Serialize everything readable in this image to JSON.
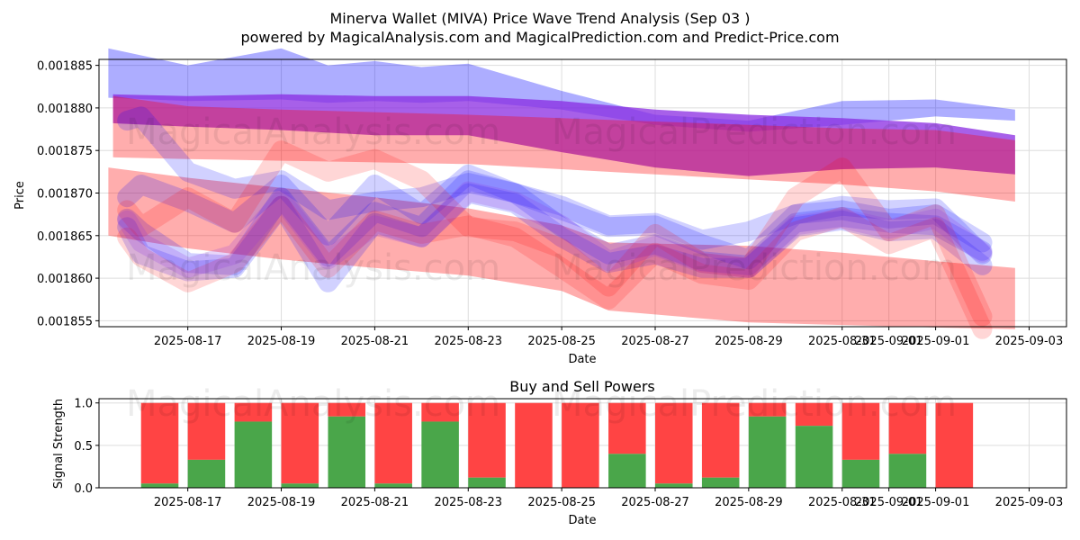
{
  "figure": {
    "title": "Minerva Wallet (MIVA) Price Wave Trend Analysis (Sep 03 )",
    "subtitle": "powered by MagicalAnalysis.com and MagicalPrediction.com and Predict-Price.com",
    "watermark_1": "MagicalAnalysis.com",
    "watermark_2": "MagicalPrediction.com"
  },
  "colors": {
    "red": "#ff0000",
    "blue": "#0000ff",
    "green": "#4aa64a",
    "sell": "#ff4444",
    "grid": "#dddddd"
  },
  "chart_data": [
    {
      "type": "area",
      "title": "",
      "xlabel": "Date",
      "ylabel": "Price",
      "xlim": [
        -1.9,
        18.8
      ],
      "ylim": [
        0.0018543,
        0.0018857
      ],
      "x_tick_positions": [
        0,
        2,
        4,
        6,
        8,
        10,
        12,
        14,
        15,
        16,
        18
      ],
      "x_tick_labels": [
        "2025-08-17",
        "2025-08-19",
        "2025-08-21",
        "2025-08-23",
        "2025-08-25",
        "2025-08-27",
        "2025-08-29",
        "2025-08-31",
        "2025-09-01",
        "2025-09-01",
        "2025-09-03"
      ],
      "y_ticks": [
        0.001855,
        0.00186,
        0.001865,
        0.00187,
        0.001875,
        0.00188,
        0.001885
      ],
      "y_tick_labels": [
        "0.001855",
        "0.001860",
        "0.001865",
        "0.001870",
        "0.001875",
        "0.001880",
        "0.001885"
      ],
      "grid": true,
      "series": [
        {
          "name": "blue band upper",
          "color": "blue",
          "opacity": 0.32,
          "x": [
            -1.7,
            0,
            2,
            3,
            4,
            5,
            6,
            8,
            10,
            12,
            14,
            16,
            17.7
          ],
          "upper": [
            0.001887,
            0.001885,
            0.001887,
            0.001885,
            0.0018855,
            0.0018848,
            0.0018852,
            0.001882,
            0.0018792,
            0.0018785,
            0.0018808,
            0.001881,
            0.0018798
          ],
          "lower": [
            0.0018812,
            0.0018808,
            0.001881,
            0.0018806,
            0.0018808,
            0.0018806,
            0.0018808,
            0.0018798,
            0.001878,
            0.0018772,
            0.001878,
            0.001879,
            0.0018785
          ]
        },
        {
          "name": "purple band upper",
          "color": "purple",
          "opacity": 0.75,
          "x": [
            -1.6,
            0,
            2,
            4,
            6,
            8,
            10,
            12,
            14,
            16,
            17.7
          ],
          "upper": [
            0.0018816,
            0.0018814,
            0.0018816,
            0.0018814,
            0.0018814,
            0.0018808,
            0.0018798,
            0.0018792,
            0.0018788,
            0.0018782,
            0.0018768
          ],
          "lower": [
            0.0018782,
            0.0018778,
            0.0018774,
            0.0018768,
            0.0018768,
            0.0018748,
            0.001873,
            0.001872,
            0.0018728,
            0.001873,
            0.0018722
          ]
        },
        {
          "name": "red band upper",
          "color": "red",
          "opacity": 0.32,
          "x": [
            -1.6,
            0,
            2,
            4,
            6,
            8,
            10,
            12,
            14,
            16,
            17.7
          ],
          "upper": [
            0.0018814,
            0.0018802,
            0.0018798,
            0.0018795,
            0.0018792,
            0.0018788,
            0.0018784,
            0.001878,
            0.0018776,
            0.0018774,
            0.0018762
          ],
          "lower": [
            0.0018742,
            0.001874,
            0.0018738,
            0.0018736,
            0.0018734,
            0.0018728,
            0.0018722,
            0.0018716,
            0.001871,
            0.0018702,
            0.001869
          ]
        },
        {
          "name": "red band lower",
          "color": "red",
          "opacity": 0.32,
          "x": [
            -1.7,
            0,
            2,
            4,
            6,
            8,
            9,
            12,
            14,
            16,
            17.7
          ],
          "upper": [
            0.001873,
            0.0018718,
            0.0018706,
            0.0018695,
            0.0018682,
            0.0018662,
            0.0018642,
            0.0018638,
            0.001863,
            0.001862,
            0.0018612
          ],
          "lower": [
            0.001865,
            0.0018635,
            0.0018622,
            0.0018612,
            0.0018603,
            0.0018585,
            0.0018562,
            0.0018548,
            0.0018545,
            0.0018542,
            0.001854
          ]
        }
      ],
      "wave_lines": [
        {
          "color": "blue",
          "opacity": 0.18,
          "x": [
            -1.3,
            -1,
            0,
            1,
            2,
            3,
            4,
            5,
            6,
            7,
            8,
            9,
            10,
            11,
            12,
            13,
            14,
            15,
            16,
            17
          ],
          "y": [
            0.0018785,
            0.001879,
            0.0018725,
            0.0018705,
            0.0018715,
            0.001868,
            0.001869,
            0.0018695,
            0.0018712,
            0.00187,
            0.0018685,
            0.0018662,
            0.0018665,
            0.0018645,
            0.0018655,
            0.0018675,
            0.0018685,
            0.001868,
            0.0018682,
            0.0018628
          ]
        },
        {
          "color": "blue",
          "opacity": 0.18,
          "x": [
            -1.3,
            -1,
            0,
            1,
            2,
            3,
            4,
            5,
            6,
            7,
            8,
            9,
            10,
            11,
            12,
            13,
            14,
            15,
            16,
            17
          ],
          "y": [
            0.001867,
            0.0018655,
            0.0018618,
            0.0018615,
            0.0018695,
            0.0018625,
            0.0018678,
            0.001866,
            0.0018715,
            0.00187,
            0.001866,
            0.0018628,
            0.001864,
            0.001862,
            0.0018615,
            0.0018665,
            0.0018672,
            0.0018665,
            0.0018662,
            0.0018632
          ]
        },
        {
          "color": "blue",
          "opacity": 0.18,
          "x": [
            -1.3,
            -1,
            0,
            1,
            2,
            3,
            4,
            5,
            6,
            7,
            8,
            9,
            10,
            11,
            12,
            13,
            14,
            15,
            16,
            17
          ],
          "y": [
            0.0018695,
            0.001871,
            0.001869,
            0.0018665,
            0.001871,
            0.001865,
            0.001871,
            0.0018675,
            0.0018722,
            0.00187,
            0.001868,
            0.001866,
            0.0018662,
            0.001864,
            0.0018622,
            0.0018675,
            0.001868,
            0.001867,
            0.0018675,
            0.0018642
          ]
        },
        {
          "color": "blue",
          "opacity": 0.18,
          "x": [
            -1.3,
            -1,
            0,
            1,
            2,
            3,
            4,
            5,
            6,
            7,
            8,
            9,
            10,
            11,
            12,
            13,
            14,
            15,
            16,
            17
          ],
          "y": [
            0.001866,
            0.0018628,
            0.0018608,
            0.0018612,
            0.0018685,
            0.0018595,
            0.0018665,
            0.0018648,
            0.00187,
            0.0018688,
            0.0018648,
            0.0018618,
            0.0018628,
            0.0018612,
            0.0018612,
            0.001866,
            0.0018668,
            0.0018655,
            0.0018658,
            0.0018615
          ]
        },
        {
          "color": "red",
          "opacity": 0.16,
          "x": [
            -1.3,
            -1,
            0,
            1,
            2,
            3,
            4,
            5,
            6,
            7,
            8,
            9,
            10,
            11,
            12,
            13,
            14,
            15,
            16,
            17
          ],
          "y": [
            0.001868,
            0.001866,
            0.0018695,
            0.0018665,
            0.001875,
            0.0018725,
            0.001874,
            0.0018715,
            0.001866,
            0.0018655,
            0.0018635,
            0.001859,
            0.0018652,
            0.0018618,
            0.0018612,
            0.0018695,
            0.001873,
            0.0018655,
            0.0018675,
            0.0018555
          ]
        },
        {
          "color": "red",
          "opacity": 0.16,
          "x": [
            -1.3,
            -1,
            0,
            1,
            2,
            3,
            4,
            5,
            6,
            7,
            8,
            9,
            10,
            11,
            12,
            13,
            14,
            15,
            16,
            17
          ],
          "y": [
            0.0018648,
            0.0018625,
            0.0018595,
            0.0018618,
            0.0018685,
            0.0018612,
            0.0018668,
            0.0018652,
            0.0018662,
            0.0018648,
            0.0018612,
            0.0018575,
            0.001863,
            0.0018605,
            0.0018598,
            0.0018655,
            0.0018672,
            0.001864,
            0.001866,
            0.001854
          ]
        },
        {
          "color": "purple",
          "opacity": 0.2,
          "x": [
            -1.3,
            -1,
            0,
            1,
            2,
            3,
            4,
            5,
            6,
            7,
            8,
            9,
            10,
            11,
            12,
            13,
            14,
            15,
            16,
            17
          ],
          "y": [
            0.0018668,
            0.0018642,
            0.0018612,
            0.0018628,
            0.0018692,
            0.0018622,
            0.0018662,
            0.0018648,
            0.0018702,
            0.001869,
            0.0018662,
            0.001862,
            0.0018638,
            0.0018618,
            0.0018612,
            0.0018662,
            0.001867,
            0.0018658,
            0.001867,
            0.001863
          ]
        }
      ]
    },
    {
      "type": "bar",
      "title": "Buy and Sell Powers",
      "xlabel": "Date",
      "ylabel": "Signal Strength",
      "xlim": [
        -1.9,
        18.8
      ],
      "ylim": [
        0,
        1.05
      ],
      "y_ticks": [
        0.0,
        0.5,
        1.0
      ],
      "y_tick_labels": [
        "0.0",
        "0.5",
        "1.0"
      ],
      "x_tick_positions": [
        0,
        2,
        4,
        6,
        8,
        10,
        12,
        14,
        15,
        16,
        18
      ],
      "x_tick_labels": [
        "2025-08-17",
        "2025-08-19",
        "2025-08-21",
        "2025-08-23",
        "2025-08-25",
        "2025-08-27",
        "2025-08-29",
        "2025-08-31",
        "2025-09-01",
        "2025-09-01",
        "2025-09-03"
      ],
      "x": [
        -0.6,
        0.4,
        1.4,
        2.4,
        3.4,
        4.4,
        5.4,
        6.4,
        7.4,
        8.4,
        9.4,
        10.4,
        11.4,
        12.4,
        13.4,
        14.4,
        15.4,
        16.4
      ],
      "buy": [
        0.05,
        0.33,
        0.78,
        0.05,
        0.84,
        0.05,
        0.78,
        0.12,
        0.0,
        0.0,
        0.4,
        0.05,
        0.12,
        0.84,
        0.73,
        0.33,
        0.4,
        0.0
      ],
      "sell_total": 1.0,
      "grid": true
    }
  ]
}
